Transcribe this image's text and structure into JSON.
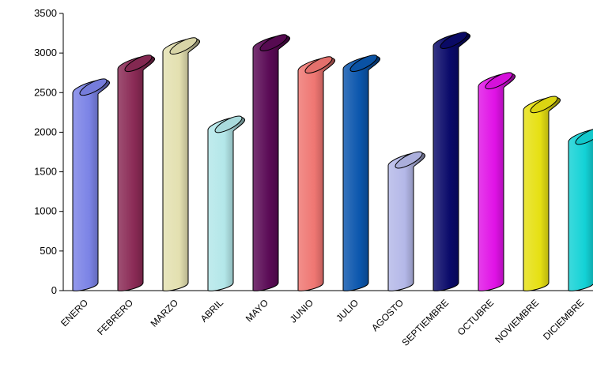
{
  "chart_data": {
    "type": "bar",
    "style": "3d-cylinder",
    "title": "",
    "xlabel": "",
    "ylabel": "",
    "ylim": [
      0,
      3500
    ],
    "yticks": [
      0,
      500,
      1000,
      1500,
      2000,
      2500,
      3000,
      3500
    ],
    "grid": false,
    "legend": "none",
    "categories": [
      "ENERO",
      "FEBRERO",
      "MARZO",
      "ABRIL",
      "MAYO",
      "JUNIO",
      "JULIO",
      "AGOSTO",
      "SEPTIEMBRE",
      "OCTUBRE",
      "NOVIEMBRE",
      "DICIEMBRE"
    ],
    "values": [
      2500,
      2800,
      3020,
      2030,
      3060,
      2780,
      2800,
      1580,
      3090,
      2580,
      2280,
      1880
    ],
    "colors": [
      "#7b83e6",
      "#8a2a55",
      "#e3e0b0",
      "#b3e7e9",
      "#5a0a55",
      "#ef7672",
      "#0b56ad",
      "#b4b8e8",
      "#0a0a6a",
      "#e012e6",
      "#e6e013",
      "#13d2d6"
    ]
  }
}
